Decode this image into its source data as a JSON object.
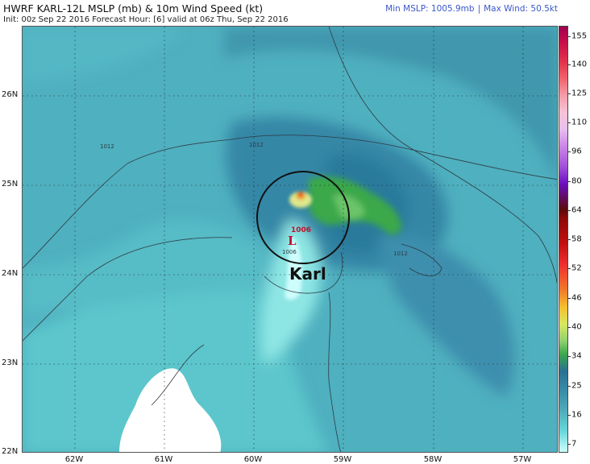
{
  "header": {
    "title": "HWRF KARL-12L MSLP (mb) & 10m Wind Speed (kt)",
    "subtitle": "Init: 00z Sep 22 2016    Forecast Hour: [6]    valid at 06z Thu, Sep 22 2016",
    "min_mslp": "Min MSLP: 1005.9mb",
    "separator": "|",
    "max_wind": "Max Wind: 50.5kt"
  },
  "map": {
    "lat_labels": [
      "26N",
      "25N",
      "24N",
      "23N",
      "22N"
    ],
    "lon_labels": [
      "62W",
      "61W",
      "60W",
      "59W",
      "58W",
      "57W"
    ],
    "isobar_labels": [
      "1012",
      "1012",
      "1012",
      "1006"
    ],
    "low": {
      "pressure": "1006",
      "symbol": "L"
    },
    "storm_name": "Karl"
  },
  "colorbar": {
    "ticks": [
      "155",
      "140",
      "125",
      "110",
      "96",
      "80",
      "64",
      "58",
      "52",
      "46",
      "40",
      "34",
      "25",
      "16",
      "7"
    ],
    "colors": {
      "calm": "#4ea9b8",
      "light": "#66d6d8",
      "bright": "#cdfdfd",
      "tropical_storm": "#3aa84a",
      "yellow": "#f4f060",
      "orange": "#f09a2a",
      "red": "#dd2222"
    }
  }
}
